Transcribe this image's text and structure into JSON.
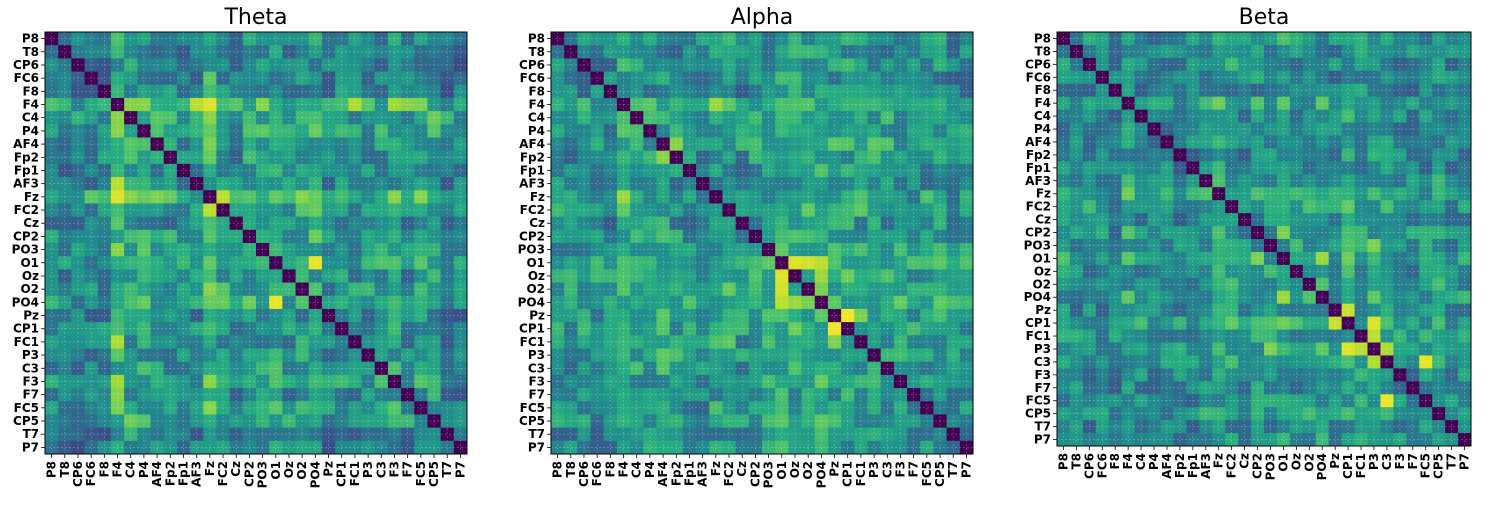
{
  "chart_data": [
    {
      "type": "heatmap",
      "title": "Theta",
      "labels": [
        "P8",
        "T8",
        "CP6",
        "FC6",
        "F8",
        "F4",
        "C4",
        "P4",
        "AF4",
        "Fp2",
        "Fp1",
        "AF3",
        "Fz",
        "FC2",
        "Cz",
        "CP2",
        "PO3",
        "O1",
        "Oz",
        "O2",
        "PO4",
        "Pz",
        "CP1",
        "FC1",
        "P3",
        "C3",
        "F3",
        "F7",
        "FC5",
        "CP5",
        "T7",
        "P7"
      ],
      "diagonal": 0.0,
      "colormap": "viridis",
      "value_range": [
        0,
        1
      ],
      "grid": true,
      "seed": 17,
      "highlights": [
        [
          "F4",
          "Fz",
          0.95
        ],
        [
          "F4",
          "AF3",
          0.9
        ],
        [
          "F4",
          "FC1",
          0.88
        ],
        [
          "F4",
          "F3",
          0.86
        ],
        [
          "F4",
          "F7",
          0.82
        ],
        [
          "F4",
          "FC5",
          0.8
        ],
        [
          "Fz",
          "FC2",
          0.9
        ],
        [
          "O1",
          "PO4",
          0.97
        ],
        [
          "O1",
          "Oz",
          0.6
        ]
      ],
      "row_offsets": [
        0.0,
        -0.05,
        -0.08,
        -0.06,
        -0.04,
        0.14,
        0.08,
        0.05,
        0.0,
        0.02,
        -0.03,
        -0.02,
        0.15,
        0.06,
        -0.05,
        0.02,
        0.04,
        0.07,
        0.0,
        0.03,
        0.1,
        -0.04,
        0.02,
        -0.02,
        -0.01,
        0.0,
        0.06,
        -0.03,
        0.05,
        0.05,
        -0.06,
        -0.06
      ]
    },
    {
      "type": "heatmap",
      "title": "Alpha",
      "labels": [
        "P8",
        "T8",
        "CP6",
        "FC6",
        "F8",
        "F4",
        "C4",
        "P4",
        "AF4",
        "Fp2",
        "Fp1",
        "AF3",
        "Fz",
        "FC2",
        "Cz",
        "CP2",
        "PO3",
        "O1",
        "Oz",
        "O2",
        "PO4",
        "Pz",
        "CP1",
        "FC1",
        "P3",
        "C3",
        "F3",
        "F7",
        "FC5",
        "CP5",
        "T7",
        "P7"
      ],
      "diagonal": 0.0,
      "colormap": "viridis",
      "value_range": [
        0,
        1
      ],
      "grid": true,
      "seed": 29,
      "highlights": [
        [
          "O1",
          "Oz",
          0.95
        ],
        [
          "O1",
          "O2",
          0.93
        ],
        [
          "O1",
          "PO4",
          0.9
        ],
        [
          "Oz",
          "PO4",
          0.85
        ],
        [
          "Pz",
          "CP1",
          0.98
        ],
        [
          "Pz",
          "FC1",
          0.8
        ],
        [
          "F4",
          "Fz",
          0.85
        ],
        [
          "AF4",
          "Fp2",
          0.82
        ],
        [
          "FC2",
          "FC1",
          0.75
        ]
      ],
      "row_offsets": [
        0.0,
        -0.04,
        -0.02,
        -0.03,
        -0.05,
        0.08,
        0.05,
        0.02,
        0.06,
        0.0,
        -0.02,
        -0.03,
        0.06,
        0.04,
        -0.02,
        0.05,
        0.03,
        0.1,
        0.08,
        0.08,
        0.1,
        0.04,
        0.06,
        0.03,
        0.05,
        0.03,
        0.02,
        -0.02,
        0.0,
        0.02,
        -0.04,
        0.0
      ]
    },
    {
      "type": "heatmap",
      "title": "Beta",
      "labels": [
        "P8",
        "T8",
        "CP6",
        "FC6",
        "F8",
        "F4",
        "C4",
        "P4",
        "AF4",
        "Fp2",
        "Fp1",
        "AF3",
        "Fz",
        "FC2",
        "Cz",
        "CP2",
        "PO3",
        "O1",
        "Oz",
        "O2",
        "PO4",
        "Pz",
        "CP1",
        "FC1",
        "P3",
        "C3",
        "F3",
        "F7",
        "FC5",
        "CP5",
        "T7",
        "P7"
      ],
      "diagonal": 0.0,
      "colormap": "viridis",
      "value_range": [
        0,
        1
      ],
      "grid": true,
      "seed": 41,
      "highlights": [
        [
          "P3",
          "CP1",
          0.95
        ],
        [
          "P3",
          "FC1",
          0.9
        ],
        [
          "P3",
          "C3",
          0.88
        ],
        [
          "CP1",
          "Pz",
          0.92
        ],
        [
          "C3",
          "FC5",
          0.97
        ],
        [
          "O1",
          "PO4",
          0.85
        ],
        [
          "O1",
          "CP2",
          0.8
        ],
        [
          "PO3",
          "P3",
          0.8
        ],
        [
          "F4",
          "Fz",
          0.78
        ]
      ],
      "row_offsets": [
        0.0,
        -0.03,
        -0.02,
        -0.04,
        -0.05,
        0.04,
        -0.01,
        -0.02,
        -0.02,
        -0.05,
        -0.04,
        0.0,
        0.06,
        0.05,
        -0.02,
        0.03,
        0.02,
        0.06,
        0.01,
        0.02,
        0.05,
        0.0,
        0.06,
        0.03,
        0.06,
        0.02,
        -0.01,
        -0.03,
        0.01,
        0.02,
        -0.04,
        0.02
      ]
    }
  ]
}
